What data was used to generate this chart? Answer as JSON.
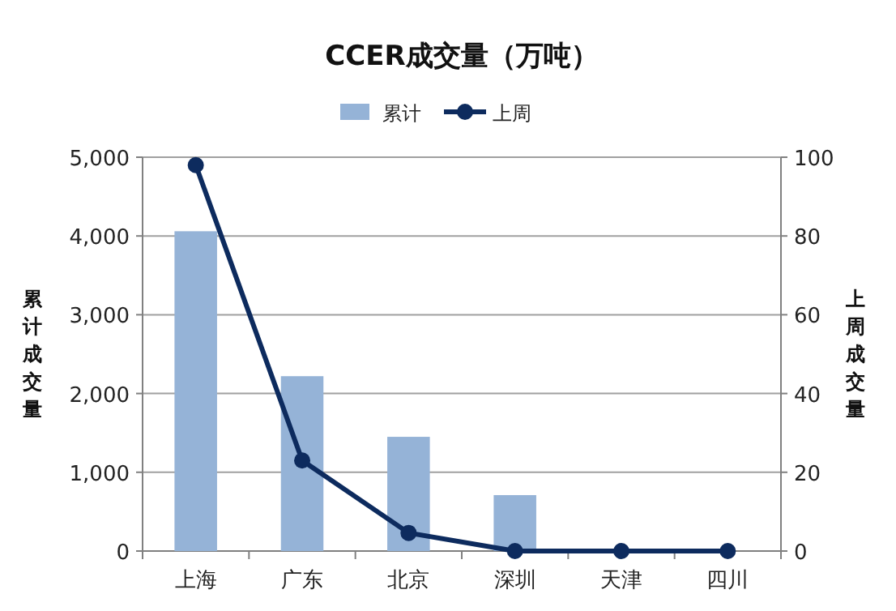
{
  "chart_data": {
    "type": "bar",
    "title": "CCER成交量（万吨）",
    "ylabel": "累计成交量",
    "y2label": "上周成交量",
    "categories": [
      "上海",
      "广东",
      "北京",
      "深圳",
      "天津",
      "四川"
    ],
    "series": [
      {
        "name": "累计",
        "color": "#95b3d7",
        "values": [
          4060,
          2220,
          1450,
          710,
          null,
          null
        ]
      },
      {
        "name": "上周",
        "type": "line",
        "axis": "y2",
        "color": "#0d2b5e",
        "values": [
          98,
          23,
          4.6,
          0,
          0,
          0
        ]
      }
    ],
    "ylim": [
      0,
      5000
    ],
    "yticks": [
      0,
      {
        "value": 1000,
        "label": "1,000"
      },
      {
        "value": 2000,
        "label": "2,000"
      },
      {
        "value": 3000,
        "label": "3,000"
      },
      {
        "value": 4000,
        "label": "4,000"
      },
      {
        "value": 5000,
        "label": "5,000"
      }
    ],
    "y2lim": [
      0,
      100
    ],
    "y2ticks": [
      0,
      20,
      40,
      60,
      80,
      100
    ],
    "grid": "y",
    "legend": "top",
    "marker": "circle"
  }
}
